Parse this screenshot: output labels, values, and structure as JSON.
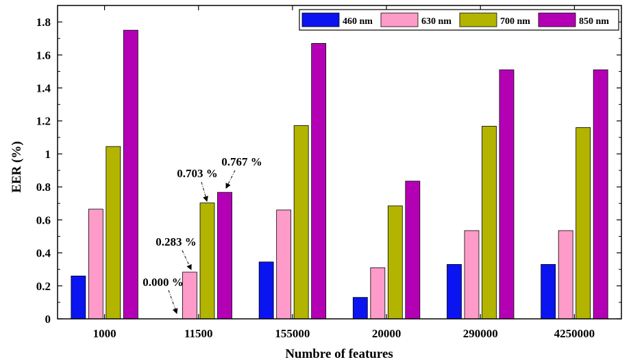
{
  "chart_data": {
    "type": "bar",
    "categories": [
      "1000",
      "11500",
      "155000",
      "20000",
      "290000",
      "4250000"
    ],
    "series": [
      {
        "name": "460 nm",
        "color": "#0a14f0",
        "values": [
          0.26,
          0.0,
          0.345,
          0.13,
          0.33,
          0.33
        ]
      },
      {
        "name": "630 nm",
        "color": "#ff9bc8",
        "values": [
          0.665,
          0.283,
          0.66,
          0.31,
          0.535,
          0.535
        ]
      },
      {
        "name": "700 nm",
        "color": "#b2b400",
        "values": [
          1.045,
          0.703,
          1.172,
          0.685,
          1.168,
          1.16
        ]
      },
      {
        "name": "850 nm",
        "color": "#b400b4",
        "values": [
          1.75,
          0.767,
          1.67,
          0.835,
          1.51,
          1.51
        ]
      }
    ],
    "xlabel": "Numbre of features",
    "ylabel": "EER (%)",
    "ylim": [
      0,
      1.9
    ],
    "yticks": [
      "0",
      "0.2",
      "0.4",
      "0.6",
      "0.8",
      "1",
      "1.2",
      "1.4",
      "1.6",
      "1.8"
    ],
    "legend_position": "top-right",
    "annotations": [
      {
        "text": "0.000 %",
        "category": 1,
        "series": 0
      },
      {
        "text": "0.283 %",
        "category": 1,
        "series": 1
      },
      {
        "text": "0.703 %",
        "category": 1,
        "series": 2
      },
      {
        "text": "0.767 %",
        "category": 1,
        "series": 3
      }
    ]
  }
}
